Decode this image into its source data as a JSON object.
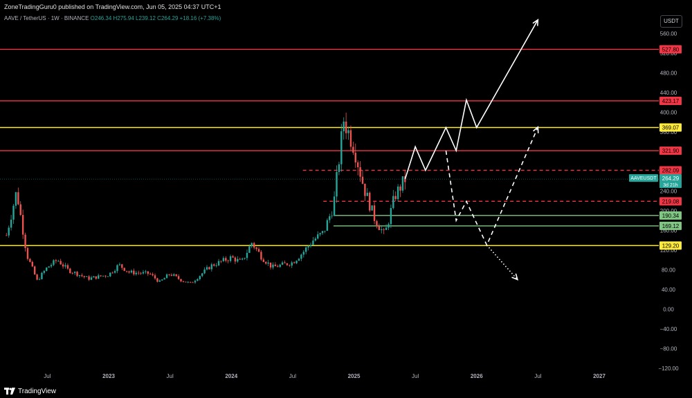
{
  "header": {
    "publish_line": "ZoneTradingGuru0 published on TradingView.com, Jun 05, 2025 04:37 UTC+1",
    "symbol": "AAVE / TetherUS · 1W · BINANCE",
    "ohlc": "O246.34 H275.94 L239.12 C264.29 +18.16 (+7.38%)",
    "currency_button": "USDT"
  },
  "footer": {
    "brand": "TradingView"
  },
  "colors": {
    "up": "#26a69a",
    "down": "#ef5350",
    "resistance": "#f23645",
    "yellow": "#ffeb3b",
    "support": "#81c784"
  },
  "chart_data": {
    "type": "candlestick",
    "symbol": "AAVE/USDT",
    "timeframe": "1W",
    "ylim": [
      -130,
      600
    ],
    "y_ticks": [
      560,
      520,
      480,
      440,
      400,
      360,
      320,
      280,
      240,
      200,
      160,
      120,
      80,
      40,
      0,
      -40,
      -80,
      -120
    ],
    "x_ticks": [
      {
        "label": "Jul",
        "date": "2022-07"
      },
      {
        "label": "2023",
        "date": "2023-01"
      },
      {
        "label": "Jul",
        "date": "2023-07"
      },
      {
        "label": "2024",
        "date": "2024-01"
      },
      {
        "label": "Jul",
        "date": "2024-07"
      },
      {
        "label": "2025",
        "date": "2025-01"
      },
      {
        "label": "Jul",
        "date": "2025-07"
      },
      {
        "label": "2026",
        "date": "2026-01"
      },
      {
        "label": "Jul",
        "date": "2026-07"
      },
      {
        "label": "2027",
        "date": "2027-01"
      }
    ],
    "price_path": [
      {
        "date": "2022-03",
        "price": 150
      },
      {
        "date": "2022-04",
        "price": 240
      },
      {
        "date": "2022-05",
        "price": 110
      },
      {
        "date": "2022-06",
        "price": 58
      },
      {
        "date": "2022-07",
        "price": 85
      },
      {
        "date": "2022-08",
        "price": 100
      },
      {
        "date": "2022-09",
        "price": 80
      },
      {
        "date": "2022-11",
        "price": 62
      },
      {
        "date": "2023-01",
        "price": 70
      },
      {
        "date": "2023-02",
        "price": 90
      },
      {
        "date": "2023-03",
        "price": 75
      },
      {
        "date": "2023-05",
        "price": 72
      },
      {
        "date": "2023-06",
        "price": 55
      },
      {
        "date": "2023-07",
        "price": 72
      },
      {
        "date": "2023-08",
        "price": 60
      },
      {
        "date": "2023-09",
        "price": 52
      },
      {
        "date": "2023-11",
        "price": 88
      },
      {
        "date": "2024-01",
        "price": 105
      },
      {
        "date": "2024-02",
        "price": 95
      },
      {
        "date": "2024-03",
        "price": 135
      },
      {
        "date": "2024-04",
        "price": 105
      },
      {
        "date": "2024-05",
        "price": 85
      },
      {
        "date": "2024-07",
        "price": 95
      },
      {
        "date": "2024-08",
        "price": 115
      },
      {
        "date": "2024-09",
        "price": 140
      },
      {
        "date": "2024-10",
        "price": 155
      },
      {
        "date": "2024-11",
        "price": 210
      },
      {
        "date": "2024-12",
        "price": 385
      },
      {
        "date": "2025-01",
        "price": 330
      },
      {
        "date": "2025-02",
        "price": 245
      },
      {
        "date": "2025-03",
        "price": 185
      },
      {
        "date": "2025-04",
        "price": 150
      },
      {
        "date": "2025-05",
        "price": 230
      },
      {
        "date": "2025-06",
        "price": 264
      }
    ],
    "horizontal_lines": [
      {
        "price": 527.8,
        "label": "527.80",
        "color": "#f23645",
        "style": "solid",
        "x_start": "start"
      },
      {
        "price": 423.17,
        "label": "423.17",
        "color": "#f23645",
        "style": "solid",
        "x_start": "start"
      },
      {
        "price": 369.07,
        "label": "369.07",
        "color": "#ffeb3b",
        "style": "solid",
        "x_start": "start"
      },
      {
        "price": 321.9,
        "label": "321.90",
        "color": "#f23645",
        "style": "solid",
        "x_start": "start"
      },
      {
        "price": 282.09,
        "label": "282.09",
        "color": "#f23645",
        "style": "dashed",
        "x_start": "2024-08"
      },
      {
        "price": 219.08,
        "label": "219.08",
        "color": "#f23645",
        "style": "dashed",
        "x_start": "2024-10"
      },
      {
        "price": 190.34,
        "label": "190.34",
        "color": "#81c784",
        "style": "solid",
        "x_start": "2024-11"
      },
      {
        "price": 169.12,
        "label": "169.12",
        "color": "#81c784",
        "style": "solid",
        "x_start": "2024-11"
      },
      {
        "price": 129.2,
        "label": "129.20",
        "color": "#ffeb3b",
        "style": "solid",
        "x_start": "start"
      }
    ],
    "current_price": {
      "price": 264.29,
      "label": "264.29",
      "symbol_label": "AAVEUSDT",
      "countdown": "3d 21h"
    },
    "projections": [
      {
        "style": "solid",
        "points": [
          {
            "date": "2025-06",
            "price": 264
          },
          {
            "date": "2025-07",
            "price": 330
          },
          {
            "date": "2025-08",
            "price": 282
          },
          {
            "date": "2025-10",
            "price": 369
          },
          {
            "date": "2025-11",
            "price": 322
          },
          {
            "date": "2025-12",
            "price": 425
          },
          {
            "date": "2026-01",
            "price": 369
          },
          {
            "date": "2026-07",
            "price": 588
          }
        ]
      },
      {
        "style": "dashed",
        "points": [
          {
            "date": "2025-10",
            "price": 322
          },
          {
            "date": "2025-11",
            "price": 180
          },
          {
            "date": "2025-12",
            "price": 219
          },
          {
            "date": "2026-02",
            "price": 130
          },
          {
            "date": "2026-07",
            "price": 370
          }
        ]
      },
      {
        "style": "dotted",
        "points": [
          {
            "date": "2026-02",
            "price": 130
          },
          {
            "date": "2026-05",
            "price": 60
          }
        ]
      }
    ]
  }
}
